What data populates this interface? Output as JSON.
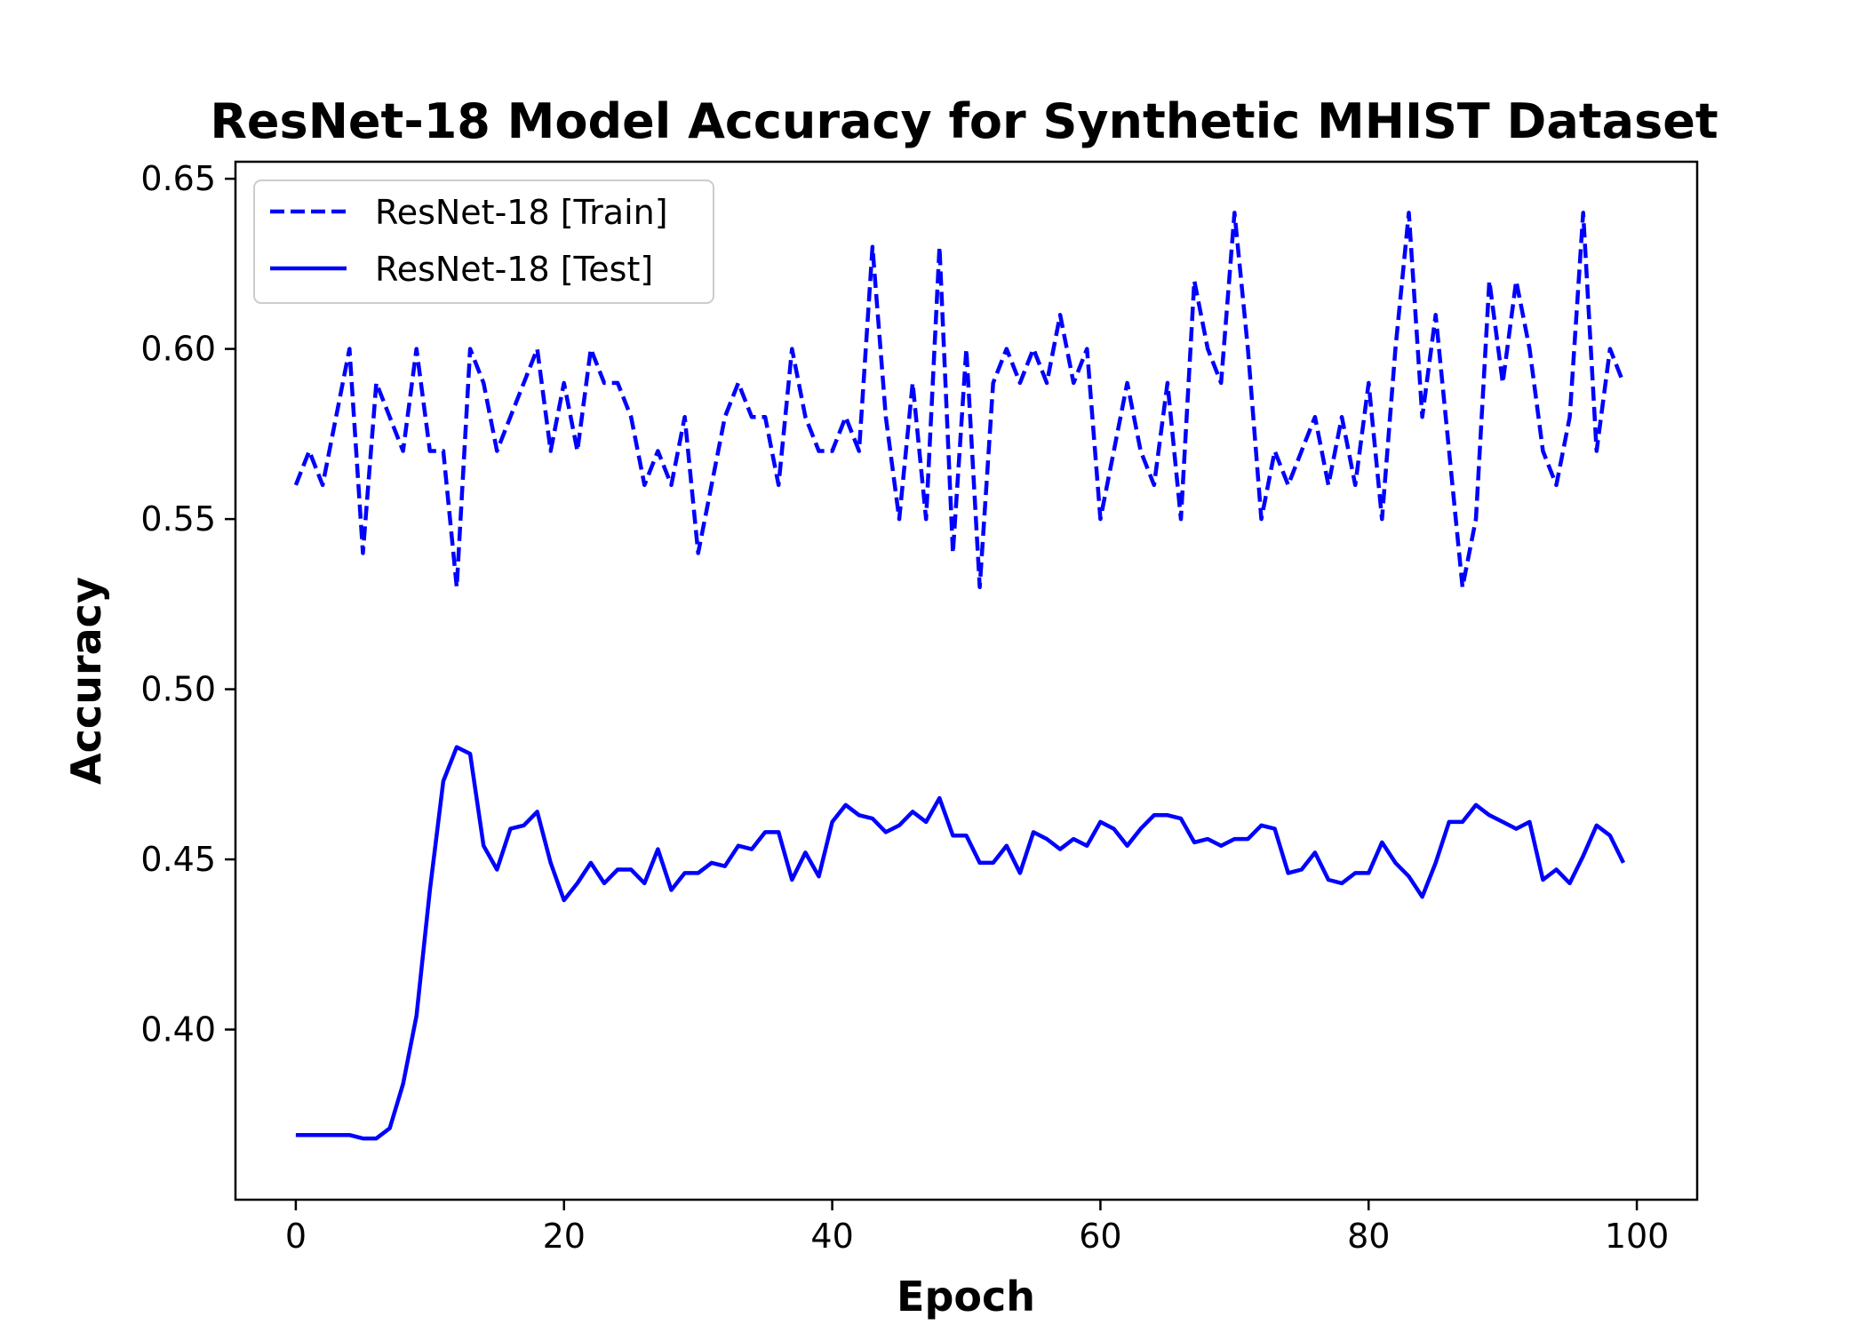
{
  "chart_data": {
    "type": "line",
    "title": "ResNet-18 Model Accuracy for Synthetic MHIST Dataset",
    "xlabel": "Epoch",
    "ylabel": "Accuracy",
    "xlim": [
      -4.5,
      104.5
    ],
    "ylim": [
      0.35,
      0.655
    ],
    "xticks": [
      0,
      20,
      40,
      60,
      80,
      100
    ],
    "yticks": [
      0.4,
      0.45,
      0.5,
      0.55,
      0.6,
      0.65
    ],
    "xtick_labels": [
      "0",
      "20",
      "40",
      "60",
      "80",
      "100"
    ],
    "ytick_labels": [
      "0.40",
      "0.45",
      "0.50",
      "0.55",
      "0.60",
      "0.65"
    ],
    "grid": false,
    "legend_position": "upper-left",
    "series": [
      {
        "name": "ResNet-18 [Train]",
        "style": "dashed",
        "color": "#0000ff",
        "x": [
          0,
          1,
          2,
          3,
          4,
          5,
          6,
          7,
          8,
          9,
          10,
          11,
          12,
          13,
          14,
          15,
          16,
          17,
          18,
          19,
          20,
          21,
          22,
          23,
          24,
          25,
          26,
          27,
          28,
          29,
          30,
          31,
          32,
          33,
          34,
          35,
          36,
          37,
          38,
          39,
          40,
          41,
          42,
          43,
          44,
          45,
          46,
          47,
          48,
          49,
          50,
          51,
          52,
          53,
          54,
          55,
          56,
          57,
          58,
          59,
          60,
          61,
          62,
          63,
          64,
          65,
          66,
          67,
          68,
          69,
          70,
          71,
          72,
          73,
          74,
          75,
          76,
          77,
          78,
          79,
          80,
          81,
          82,
          83,
          84,
          85,
          86,
          87,
          88,
          89,
          90,
          91,
          92,
          93,
          94,
          95,
          96,
          97,
          98,
          99
        ],
        "values": [
          0.56,
          0.57,
          0.56,
          0.58,
          0.6,
          0.54,
          0.59,
          0.58,
          0.57,
          0.6,
          0.57,
          0.57,
          0.53,
          0.6,
          0.59,
          0.57,
          0.58,
          0.59,
          0.6,
          0.57,
          0.59,
          0.57,
          0.6,
          0.59,
          0.59,
          0.58,
          0.56,
          0.57,
          0.56,
          0.58,
          0.54,
          0.56,
          0.58,
          0.59,
          0.58,
          0.58,
          0.56,
          0.6,
          0.58,
          0.57,
          0.57,
          0.58,
          0.57,
          0.63,
          0.58,
          0.55,
          0.59,
          0.55,
          0.63,
          0.54,
          0.6,
          0.53,
          0.59,
          0.6,
          0.59,
          0.6,
          0.59,
          0.61,
          0.59,
          0.6,
          0.55,
          0.57,
          0.59,
          0.57,
          0.56,
          0.59,
          0.55,
          0.62,
          0.6,
          0.59,
          0.64,
          0.6,
          0.55,
          0.57,
          0.56,
          0.57,
          0.58,
          0.56,
          0.58,
          0.56,
          0.59,
          0.55,
          0.6,
          0.64,
          0.58,
          0.61,
          0.57,
          0.53,
          0.55,
          0.62,
          0.59,
          0.62,
          0.6,
          0.57,
          0.56,
          0.58,
          0.64,
          0.57,
          0.6,
          0.59
        ]
      },
      {
        "name": "ResNet-18 [Test]",
        "style": "solid",
        "color": "#0000ff",
        "x": [
          0,
          1,
          2,
          3,
          4,
          5,
          6,
          7,
          8,
          9,
          10,
          11,
          12,
          13,
          14,
          15,
          16,
          17,
          18,
          19,
          20,
          21,
          22,
          23,
          24,
          25,
          26,
          27,
          28,
          29,
          30,
          31,
          32,
          33,
          34,
          35,
          36,
          37,
          38,
          39,
          40,
          41,
          42,
          43,
          44,
          45,
          46,
          47,
          48,
          49,
          50,
          51,
          52,
          53,
          54,
          55,
          56,
          57,
          58,
          59,
          60,
          61,
          62,
          63,
          64,
          65,
          66,
          67,
          68,
          69,
          70,
          71,
          72,
          73,
          74,
          75,
          76,
          77,
          78,
          79,
          80,
          81,
          82,
          83,
          84,
          85,
          86,
          87,
          88,
          89,
          90,
          91,
          92,
          93,
          94,
          95,
          96,
          97,
          98,
          99
        ],
        "values": [
          0.369,
          0.369,
          0.369,
          0.369,
          0.369,
          0.368,
          0.368,
          0.371,
          0.384,
          0.404,
          0.441,
          0.473,
          0.483,
          0.481,
          0.454,
          0.447,
          0.459,
          0.46,
          0.464,
          0.449,
          0.438,
          0.443,
          0.449,
          0.443,
          0.447,
          0.447,
          0.443,
          0.453,
          0.441,
          0.446,
          0.446,
          0.449,
          0.448,
          0.454,
          0.453,
          0.458,
          0.458,
          0.444,
          0.452,
          0.445,
          0.461,
          0.466,
          0.463,
          0.462,
          0.458,
          0.46,
          0.464,
          0.461,
          0.468,
          0.457,
          0.457,
          0.449,
          0.449,
          0.454,
          0.446,
          0.458,
          0.456,
          0.453,
          0.456,
          0.454,
          0.461,
          0.459,
          0.454,
          0.459,
          0.463,
          0.463,
          0.462,
          0.455,
          0.456,
          0.454,
          0.456,
          0.456,
          0.46,
          0.459,
          0.446,
          0.447,
          0.452,
          0.444,
          0.443,
          0.446,
          0.446,
          0.455,
          0.449,
          0.445,
          0.439,
          0.449,
          0.461,
          0.461,
          0.466,
          0.463,
          0.461,
          0.459,
          0.461,
          0.444,
          0.447,
          0.443,
          0.451,
          0.46,
          0.457,
          0.449
        ]
      }
    ]
  }
}
